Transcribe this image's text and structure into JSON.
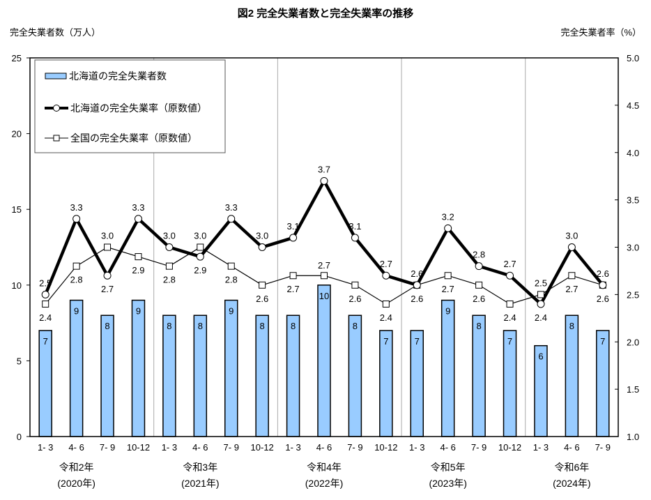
{
  "chart_data": {
    "type": "bar+line",
    "title": "図2  完全失業者数と完全失業率の推移",
    "ylabel_left": "完全失業者数（万人）",
    "ylabel_right": "完全失業者率（%）",
    "ylim_left": [
      0,
      25
    ],
    "yticks_left": [
      "0",
      "5",
      "10",
      "15",
      "20",
      "25"
    ],
    "ylim_right": [
      1.0,
      5.0
    ],
    "yticks_right": [
      "1.0",
      "1.5",
      "2.0",
      "2.5",
      "3.0",
      "3.5",
      "4.0",
      "4.5",
      "5.0"
    ],
    "categories": [
      "1- 3",
      "4- 6",
      "7- 9",
      "10-12",
      "1- 3",
      "4- 6",
      "7- 9",
      "10-12",
      "1- 3",
      "4- 6",
      "7- 9",
      "10-12",
      "1- 3",
      "4- 6",
      "7- 9",
      "10-12",
      "1- 3",
      "4- 6",
      "7- 9"
    ],
    "groups": [
      {
        "label": "令和2年",
        "sub": "(2020年)"
      },
      {
        "label": "令和3年",
        "sub": "(2021年)"
      },
      {
        "label": "令和4年",
        "sub": "(2022年)"
      },
      {
        "label": "令和5年",
        "sub": "(2023年)"
      },
      {
        "label": "令和6年",
        "sub": "(2024年)"
      }
    ],
    "series": [
      {
        "name": "北海道の完全失業者数",
        "type": "bar",
        "axis": "left",
        "color": "#99ccff",
        "values": [
          7,
          9,
          8,
          9,
          8,
          8,
          9,
          8,
          8,
          10,
          8,
          7,
          7,
          9,
          8,
          7,
          6,
          8,
          7
        ]
      },
      {
        "name": "北海道の完全失業率（原数値）",
        "type": "line",
        "axis": "right",
        "marker": "circle",
        "color": "#000000",
        "values": [
          2.5,
          3.3,
          2.7,
          3.3,
          3.0,
          2.9,
          3.3,
          3.0,
          3.1,
          3.7,
          3.1,
          2.7,
          2.6,
          3.2,
          2.8,
          2.7,
          2.4,
          3.0,
          2.6
        ]
      },
      {
        "name": "全国の完全失業率（原数値）",
        "type": "line",
        "axis": "right",
        "marker": "square",
        "color": "#000000",
        "values": [
          2.4,
          2.8,
          3.0,
          2.9,
          2.8,
          3.0,
          2.8,
          2.6,
          2.7,
          2.7,
          2.6,
          2.4,
          2.6,
          2.7,
          2.6,
          2.4,
          2.5,
          2.7,
          2.6
        ]
      }
    ],
    "legend_placement": "top-left",
    "grid": false
  }
}
